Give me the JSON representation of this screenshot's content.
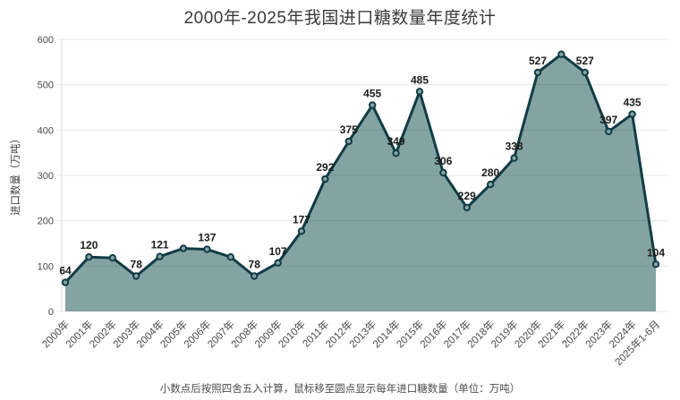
{
  "page": {
    "title": "2000年-2025年我国进口糖数量年度统计",
    "footnote": "小数点后按照四舍五入计算，鼠标移至圆点显示每年进口糖数量（单位：万吨）"
  },
  "chart_data": {
    "type": "area",
    "title": "2000年-2025年我国进口糖数量年度统计",
    "xlabel": "",
    "ylabel": "进口数量（万吨）",
    "categories": [
      "2000年",
      "2001年",
      "2002年",
      "2003年",
      "2004年",
      "2005年",
      "2006年",
      "2007年",
      "2008年",
      "2009年",
      "2010年",
      "2011年",
      "2012年",
      "2013年",
      "2014年",
      "2015年",
      "2016年",
      "2017年",
      "2018年",
      "2019年",
      "2020年",
      "2021年",
      "2022年",
      "2023年",
      "2024年",
      "2025年1-6月"
    ],
    "values": [
      64,
      120,
      118,
      78,
      121,
      139,
      137,
      120,
      78,
      107,
      177,
      292,
      375,
      455,
      349,
      485,
      306,
      229,
      280,
      338,
      527,
      567,
      527,
      397,
      435,
      104
    ],
    "point_labels": [
      "64",
      "120",
      "",
      "78",
      "121",
      "",
      "137",
      "",
      "78",
      "107",
      "177",
      "292",
      "375",
      "455",
      "349",
      "485",
      "306",
      "229",
      "280",
      "338",
      "527",
      "",
      "527",
      "397",
      "435",
      "104"
    ],
    "ylim": [
      0,
      600
    ],
    "yticks": [
      0,
      100,
      200,
      300,
      400,
      500,
      600
    ],
    "grid": true,
    "legend_position": "none",
    "colors": {
      "line": "#123c44",
      "fill": "rgba(9,73,71,0.5)",
      "marker_stroke": "#123c44",
      "marker_fill": "#86a5a3",
      "grid": "#e4e4e4",
      "axis": "#d9d9d9",
      "point_label": "#1a1a1a",
      "tick_label": "#4a4a4a",
      "title": "#3a3a3a",
      "footnote": "#4d4d4d"
    }
  }
}
